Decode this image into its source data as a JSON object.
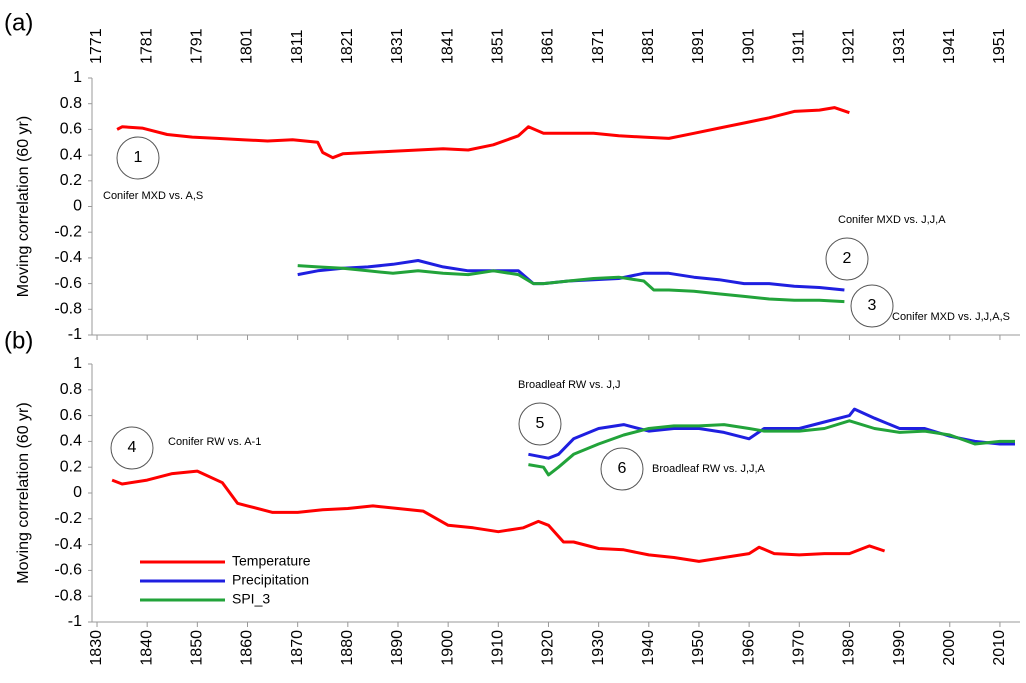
{
  "chart_data": [
    {
      "type": "line",
      "panel_label": "(a)",
      "ylabel": "Moving correlation (60 yr)",
      "xaxis_position": "top",
      "xlim": [
        1770,
        1955
      ],
      "xticks": [
        1771,
        1781,
        1791,
        1801,
        1811,
        1821,
        1831,
        1841,
        1851,
        1861,
        1871,
        1881,
        1891,
        1901,
        1911,
        1921,
        1931,
        1941,
        1951
      ],
      "ylim": [
        -1,
        1
      ],
      "yticks": [
        -1,
        -0.8,
        -0.6,
        -0.4,
        -0.2,
        0,
        0.2,
        0.4,
        0.6,
        0.8,
        1
      ],
      "series": [
        {
          "color": "#ff0000",
          "x": [
            1775,
            1776,
            1780,
            1785,
            1790,
            1795,
            1800,
            1805,
            1810,
            1815,
            1816,
            1818,
            1820,
            1825,
            1830,
            1835,
            1840,
            1845,
            1850,
            1855,
            1857,
            1860,
            1865,
            1870,
            1875,
            1880,
            1885,
            1890,
            1895,
            1900,
            1905,
            1910,
            1915,
            1918,
            1921
          ],
          "values": [
            0.6,
            0.62,
            0.61,
            0.56,
            0.54,
            0.53,
            0.52,
            0.51,
            0.52,
            0.5,
            0.42,
            0.38,
            0.41,
            0.42,
            0.43,
            0.44,
            0.45,
            0.44,
            0.48,
            0.55,
            0.62,
            0.57,
            0.57,
            0.57,
            0.55,
            0.54,
            0.53,
            0.57,
            0.61,
            0.65,
            0.69,
            0.74,
            0.75,
            0.77,
            0.73
          ]
        },
        {
          "color": "#1f1fe0",
          "x": [
            1811,
            1815,
            1820,
            1825,
            1830,
            1835,
            1840,
            1845,
            1850,
            1855,
            1858,
            1860,
            1865,
            1870,
            1875,
            1880,
            1885,
            1890,
            1895,
            1900,
            1905,
            1910,
            1915,
            1920
          ],
          "values": [
            -0.53,
            -0.5,
            -0.48,
            -0.47,
            -0.45,
            -0.42,
            -0.47,
            -0.5,
            -0.5,
            -0.5,
            -0.6,
            -0.6,
            -0.58,
            -0.57,
            -0.56,
            -0.52,
            -0.52,
            -0.55,
            -0.57,
            -0.6,
            -0.6,
            -0.62,
            -0.63,
            -0.65
          ]
        },
        {
          "color": "#22a33a",
          "x": [
            1811,
            1815,
            1820,
            1825,
            1830,
            1835,
            1840,
            1845,
            1850,
            1855,
            1858,
            1860,
            1865,
            1870,
            1875,
            1880,
            1882,
            1885,
            1890,
            1895,
            1900,
            1905,
            1910,
            1915,
            1920
          ],
          "values": [
            -0.46,
            -0.47,
            -0.48,
            -0.5,
            -0.52,
            -0.5,
            -0.52,
            -0.53,
            -0.5,
            -0.53,
            -0.6,
            -0.6,
            -0.58,
            -0.56,
            -0.55,
            -0.58,
            -0.65,
            -0.65,
            -0.66,
            -0.68,
            -0.7,
            -0.72,
            -0.73,
            -0.73,
            -0.74
          ]
        }
      ],
      "markers": [
        "1",
        "2",
        "3"
      ],
      "annotations": [
        "Conifer MXD vs. A,S",
        "Conifer MXD vs. J,J,A",
        "Conifer MXD vs. J,J,A,S"
      ]
    },
    {
      "type": "line",
      "panel_label": "(b)",
      "ylabel": "Moving correlation (60 yr)",
      "xaxis_position": "bottom",
      "xlim": [
        1829,
        2014
      ],
      "xticks": [
        1830,
        1840,
        1850,
        1860,
        1870,
        1880,
        1890,
        1900,
        1910,
        1920,
        1930,
        1940,
        1950,
        1960,
        1970,
        1980,
        1990,
        2000,
        2010
      ],
      "ylim": [
        -1,
        1
      ],
      "yticks": [
        -1,
        -0.8,
        -0.6,
        -0.4,
        -0.2,
        0,
        0.2,
        0.4,
        0.6,
        0.8,
        1
      ],
      "legend": "lower left",
      "series": [
        {
          "name": "Temperature",
          "color": "#ff0000",
          "x": [
            1833,
            1835,
            1840,
            1845,
            1850,
            1855,
            1858,
            1860,
            1865,
            1870,
            1875,
            1880,
            1885,
            1890,
            1895,
            1900,
            1905,
            1910,
            1915,
            1918,
            1920,
            1923,
            1925,
            1930,
            1935,
            1940,
            1945,
            1950,
            1955,
            1960,
            1962,
            1965,
            1970,
            1975,
            1980,
            1984,
            1987
          ],
          "values": [
            0.1,
            0.07,
            0.1,
            0.15,
            0.17,
            0.08,
            -0.08,
            -0.1,
            -0.15,
            -0.15,
            -0.13,
            -0.12,
            -0.1,
            -0.12,
            -0.14,
            -0.25,
            -0.27,
            -0.3,
            -0.27,
            -0.22,
            -0.25,
            -0.38,
            -0.38,
            -0.43,
            -0.44,
            -0.48,
            -0.5,
            -0.53,
            -0.5,
            -0.47,
            -0.42,
            -0.47,
            -0.48,
            -0.47,
            -0.47,
            -0.41,
            -0.45
          ]
        },
        {
          "name": "Precipitation",
          "color": "#1f1fe0",
          "x": [
            1916,
            1920,
            1922,
            1925,
            1930,
            1935,
            1940,
            1945,
            1950,
            1955,
            1960,
            1963,
            1965,
            1970,
            1975,
            1980,
            1981,
            1985,
            1990,
            1995,
            2000,
            2005,
            2010,
            2013
          ],
          "values": [
            0.3,
            0.27,
            0.3,
            0.42,
            0.5,
            0.53,
            0.48,
            0.5,
            0.5,
            0.47,
            0.42,
            0.5,
            0.5,
            0.5,
            0.55,
            0.6,
            0.65,
            0.58,
            0.5,
            0.5,
            0.44,
            0.4,
            0.38,
            0.38
          ]
        },
        {
          "name": "SPI_3",
          "color": "#22a33a",
          "x": [
            1916,
            1919,
            1920,
            1922,
            1925,
            1930,
            1935,
            1940,
            1945,
            1950,
            1955,
            1960,
            1963,
            1965,
            1970,
            1975,
            1980,
            1985,
            1990,
            1995,
            2000,
            2005,
            2010,
            2013
          ],
          "values": [
            0.22,
            0.2,
            0.14,
            0.2,
            0.3,
            0.38,
            0.45,
            0.5,
            0.52,
            0.52,
            0.53,
            0.5,
            0.48,
            0.48,
            0.48,
            0.5,
            0.56,
            0.5,
            0.47,
            0.48,
            0.45,
            0.38,
            0.4,
            0.4
          ]
        }
      ],
      "markers": [
        "4",
        "5",
        "6"
      ],
      "annotations": [
        "Conifer RW vs. A-1",
        "Broadleaf RW vs. J,J",
        "Broadleaf RW vs. J,J,A"
      ]
    }
  ]
}
